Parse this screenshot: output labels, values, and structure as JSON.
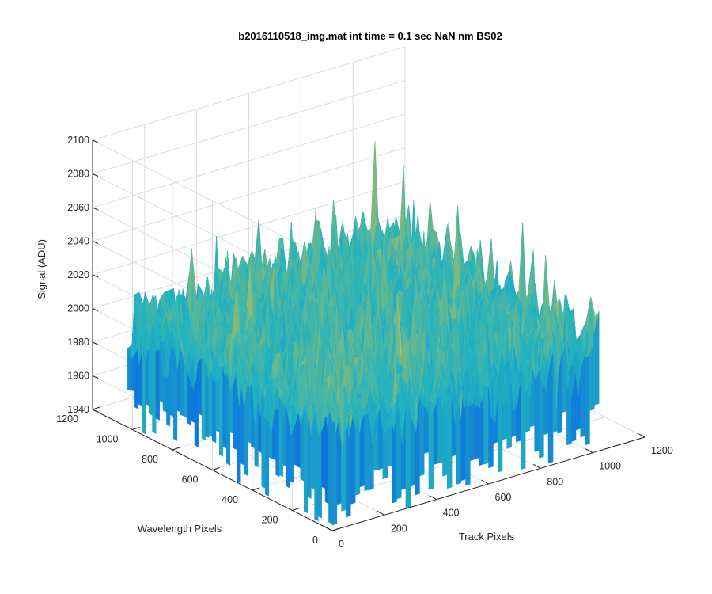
{
  "chart_data": {
    "type": "surface",
    "title": "b2016110518_img.mat int time = 0.1 sec  NaN nm BS02",
    "zlabel": "Signal (ADU)",
    "xlabel": "Track Pixels",
    "ylabel": "Wavelength Pixels",
    "xlim": [
      0,
      1200
    ],
    "ylim": [
      0,
      1200
    ],
    "zlim": [
      1940,
      2100
    ],
    "x_ticks": [
      "0",
      "200",
      "400",
      "600",
      "800",
      "1000",
      "1200"
    ],
    "y_ticks": [
      "0",
      "200",
      "400",
      "600",
      "800",
      "1000",
      "1200"
    ],
    "z_ticks": [
      "1940",
      "1960",
      "1980",
      "2000",
      "2020",
      "2040",
      "2060",
      "2080",
      "2100"
    ],
    "grid": true,
    "colormap": "parula",
    "surface_extent": {
      "x": [
        0,
        1024
      ],
      "y": [
        0,
        1024
      ]
    },
    "mean_signal": 2005,
    "noise_range": [
      1950,
      2090
    ]
  },
  "colors": {
    "low": "#0b6fe0",
    "mid": "#22b3c0",
    "high": "#d6c040",
    "axis": "#262626",
    "grid": "#dcdcdc"
  }
}
